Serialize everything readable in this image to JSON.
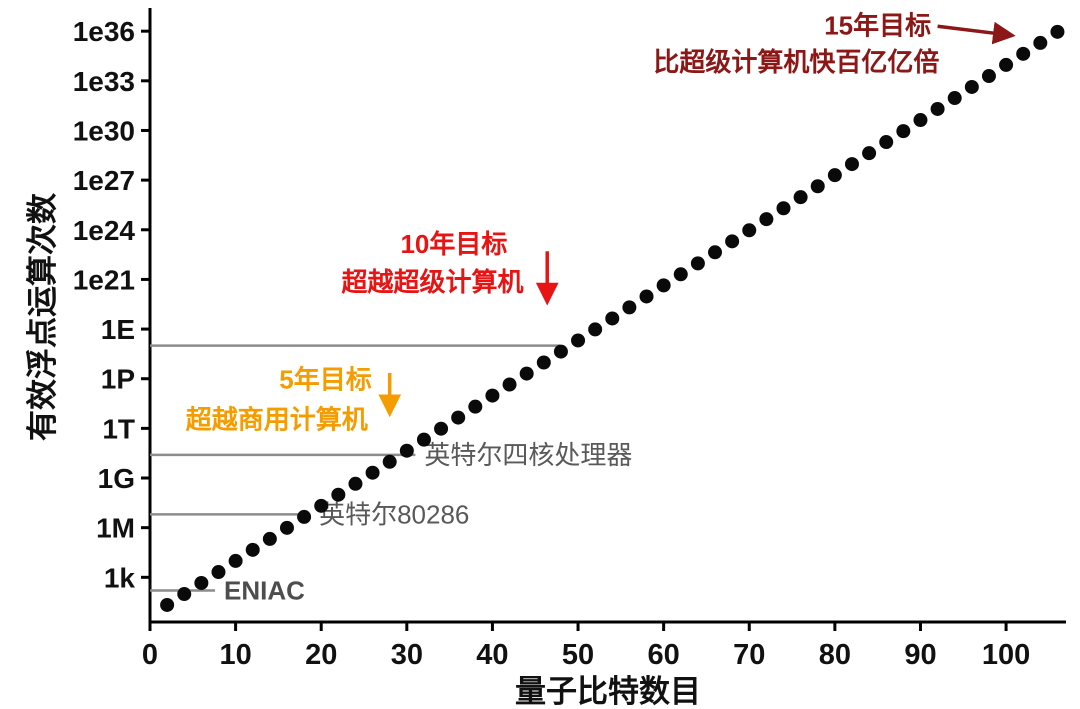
{
  "chart_data": {
    "type": "scatter",
    "title": "",
    "xlabel": "量子比特数目",
    "ylabel": "有效浮点运算次数",
    "xlim": [
      0,
      107
    ],
    "ylim_log10": [
      0.3,
      37.4
    ],
    "grid": false,
    "point_color": "#0a0a0a",
    "point_radius": 7,
    "x_ticks": [
      0,
      10,
      20,
      30,
      40,
      50,
      60,
      70,
      80,
      90,
      100
    ],
    "y_ticks": [
      {
        "label": "1e36",
        "log10": 36
      },
      {
        "label": "1e33",
        "log10": 33
      },
      {
        "label": "1e30",
        "log10": 30
      },
      {
        "label": "1e27",
        "log10": 27
      },
      {
        "label": "1e24",
        "log10": 24
      },
      {
        "label": "1e21",
        "log10": 21
      },
      {
        "label": "1E",
        "log10": 18
      },
      {
        "label": "1P",
        "log10": 15
      },
      {
        "label": "1T",
        "log10": 12
      },
      {
        "label": "1G",
        "log10": 9
      },
      {
        "label": "1M",
        "log10": 6
      },
      {
        "label": "1k",
        "log10": 3
      }
    ],
    "points": [
      [
        2,
        1.33
      ],
      [
        4,
        1.99
      ],
      [
        6,
        2.66
      ],
      [
        8,
        3.32
      ],
      [
        10,
        3.99
      ],
      [
        12,
        4.66
      ],
      [
        14,
        5.32
      ],
      [
        16,
        5.99
      ],
      [
        18,
        6.65
      ],
      [
        20,
        7.32
      ],
      [
        22,
        7.99
      ],
      [
        24,
        8.65
      ],
      [
        26,
        9.32
      ],
      [
        28,
        9.98
      ],
      [
        30,
        10.65
      ],
      [
        32,
        11.32
      ],
      [
        34,
        11.98
      ],
      [
        36,
        12.65
      ],
      [
        38,
        13.31
      ],
      [
        40,
        13.98
      ],
      [
        42,
        14.65
      ],
      [
        44,
        15.31
      ],
      [
        46,
        15.98
      ],
      [
        48,
        16.64
      ],
      [
        50,
        17.31
      ],
      [
        52,
        17.98
      ],
      [
        54,
        18.64
      ],
      [
        56,
        19.31
      ],
      [
        58,
        19.97
      ],
      [
        60,
        20.64
      ],
      [
        62,
        21.31
      ],
      [
        64,
        21.97
      ],
      [
        66,
        22.64
      ],
      [
        68,
        23.3
      ],
      [
        70,
        23.97
      ],
      [
        72,
        24.64
      ],
      [
        74,
        25.3
      ],
      [
        76,
        25.97
      ],
      [
        78,
        26.63
      ],
      [
        80,
        27.3
      ],
      [
        82,
        27.97
      ],
      [
        84,
        28.63
      ],
      [
        86,
        29.3
      ],
      [
        88,
        29.96
      ],
      [
        90,
        30.63
      ],
      [
        92,
        31.3
      ],
      [
        94,
        31.96
      ],
      [
        96,
        32.63
      ],
      [
        98,
        33.29
      ],
      [
        100,
        33.96
      ],
      [
        102,
        34.63
      ],
      [
        104,
        35.29
      ],
      [
        106,
        35.96
      ]
    ],
    "reference_lines": [
      {
        "name": "supercomputer-level",
        "log10y": 17.0,
        "x_start": 0,
        "x_end": 47.9,
        "label": "",
        "color": "#8c8c8c",
        "label_color": "#595959",
        "label_bold": false
      },
      {
        "name": "intel-quadcore",
        "log10y": 10.4,
        "x_start": 0,
        "x_end": 31.0,
        "label": "英特尔四核处理器",
        "color": "#8c8c8c",
        "label_color": "#595959",
        "label_bold": false
      },
      {
        "name": "intel-80286",
        "log10y": 6.8,
        "x_start": 0,
        "x_end": 18.7,
        "label": "英特尔80286",
        "color": "#8c8c8c",
        "label_color": "#595959",
        "label_bold": false
      },
      {
        "name": "eniac",
        "log10y": 2.2,
        "x_start": 0,
        "x_end": 7.6,
        "label": "ENIAC",
        "color": "#8c8c8c",
        "label_color": "#4d4d4d",
        "label_bold": true
      }
    ],
    "annotations": [
      {
        "name": "goal-15y",
        "color": "#8b1717",
        "font_size": 26,
        "lines": [
          {
            "text": "15年目标",
            "x": 85.0,
            "log10y": 36.35
          },
          {
            "text": "比超级计算机快百亿亿倍",
            "x": 75.5,
            "log10y": 34.15
          }
        ],
        "arrow": {
          "x1": 92.0,
          "log10y1": 36.3,
          "x2": 100.6,
          "log10y2": 35.75
        }
      },
      {
        "name": "goal-10y",
        "color": "#e81313",
        "font_size": 26,
        "lines": [
          {
            "text": "10年目标",
            "x": 35.5,
            "log10y": 23.15
          },
          {
            "text": "超越超级计算机",
            "x": 33.0,
            "log10y": 20.85
          }
        ],
        "arrow": {
          "x1": 46.4,
          "log10y1": 22.7,
          "x2": 46.4,
          "log10y2": 19.7
        }
      },
      {
        "name": "goal-5y",
        "color": "#f59c00",
        "font_size": 26,
        "lines": [
          {
            "text": "5年目标",
            "x": 20.5,
            "log10y": 14.95
          },
          {
            "text": "超越商用计算机",
            "x": 14.8,
            "log10y": 12.55
          }
        ],
        "arrow": {
          "x1": 28.0,
          "log10y1": 15.35,
          "x2": 28.0,
          "log10y2": 12.95
        }
      }
    ]
  }
}
